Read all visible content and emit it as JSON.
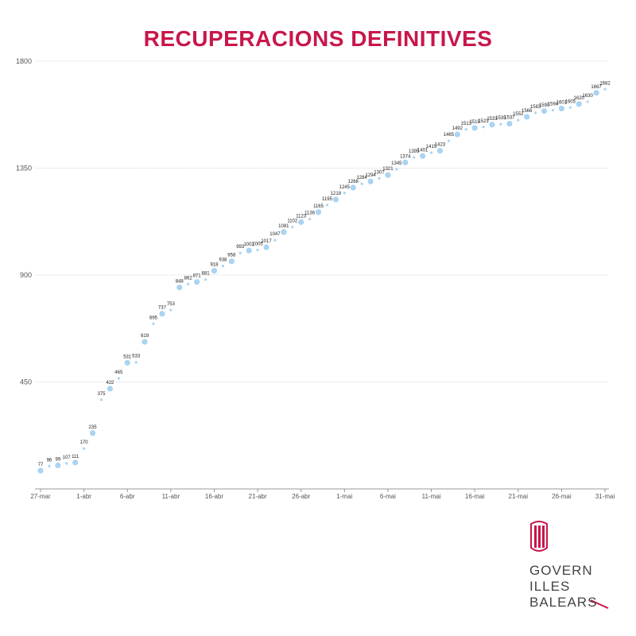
{
  "chart_data": {
    "type": "line",
    "title": "RECUPERACIONS DEFINITIVES",
    "xlabel": "",
    "ylabel": "",
    "ylim": [
      0,
      1800
    ],
    "yticks": [
      450,
      900,
      1350,
      1800
    ],
    "x_tick_labels": [
      "27-mar",
      "1-abr",
      "6-abr",
      "11-abr",
      "16-abr",
      "21-abr",
      "26-abr",
      "1-mai",
      "6-mai",
      "11-mai",
      "16-mai",
      "21-mai",
      "26-mai",
      "31-mai"
    ],
    "grid": true,
    "colors": {
      "marker": "#a9d4f2",
      "grid": "#d8d8d8",
      "title": "#c8174a"
    },
    "series": [
      {
        "values": [
          77,
          96,
          99,
          107,
          111,
          170,
          235,
          375,
          422,
          465,
          531,
          533,
          619,
          695,
          737,
          753,
          848,
          862,
          871,
          881,
          918,
          938,
          958,
          993,
          1003,
          1005,
          1017,
          1047,
          1081,
          1102,
          1123,
          1136,
          1165,
          1195,
          1218,
          1245,
          1268,
          1284,
          1294,
          1307,
          1321,
          1345,
          1374,
          1395,
          1401,
          1415,
          1423,
          1465,
          1492,
          1513,
          1519,
          1523,
          1533,
          1535,
          1537,
          1552,
          1566,
          1583,
          1590,
          1594,
          1601,
          1605,
          1620,
          1630,
          1667,
          1682
        ]
      }
    ],
    "labeled_values": [
      77,
      96,
      99,
      107,
      111,
      170,
      235,
      375,
      422,
      465,
      531,
      533,
      619,
      695,
      737,
      753,
      848,
      862,
      871,
      881,
      918,
      938,
      958,
      993,
      1003,
      1005,
      1017,
      1047,
      1081,
      1102,
      1123,
      1136,
      1165,
      1195,
      1218,
      1245,
      1268,
      1284,
      1294,
      1307,
      1321,
      1345,
      1374,
      1395,
      1401,
      1415,
      1423,
      1465,
      1492,
      1513,
      1519,
      1523,
      1533,
      1535,
      1537,
      1552,
      1566,
      1583,
      1590,
      1594,
      1601,
      1605,
      1620,
      1630,
      1667,
      1682
    ]
  },
  "logo": {
    "lines": [
      "GOVERN",
      "ILLES",
      "BALEARS"
    ],
    "icon": "balearic-government-emblem",
    "color": "#c8174a"
  }
}
